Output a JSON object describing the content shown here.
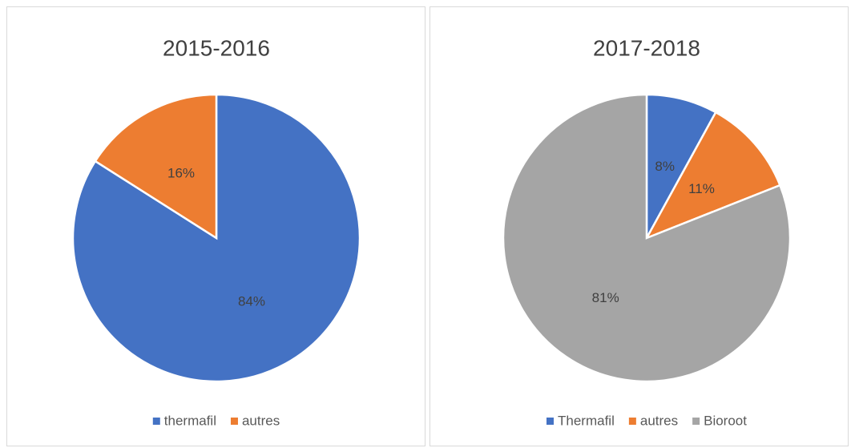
{
  "chart_data": [
    {
      "type": "pie",
      "title": "2015-2016",
      "categories": [
        "thermafil",
        "autres"
      ],
      "values": [
        84,
        16
      ],
      "value_labels": [
        "84%",
        "16%"
      ],
      "colors": [
        "#4472c4",
        "#ed7d31"
      ],
      "legend": "bottom"
    },
    {
      "type": "pie",
      "title": "2017-2018",
      "categories": [
        "Thermafil",
        "autres",
        "Bioroot"
      ],
      "values": [
        8,
        11,
        81
      ],
      "value_labels": [
        "8%",
        "11%",
        "81%"
      ],
      "colors": [
        "#4472c4",
        "#ed7d31",
        "#a5a5a5"
      ],
      "legend": "bottom"
    }
  ]
}
